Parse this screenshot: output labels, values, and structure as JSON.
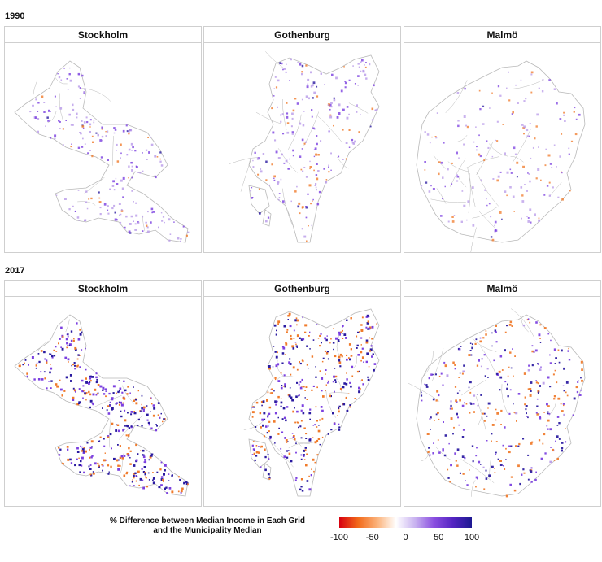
{
  "rows": [
    {
      "year": "1990",
      "panels": [
        {
          "city": "Stockholm",
          "shape": "stockholm",
          "intensity": 0.55,
          "orange_share": 0.15,
          "dark_share": 0.05,
          "seed": 11
        },
        {
          "city": "Gothenburg",
          "shape": "gothenburg",
          "intensity": 0.55,
          "orange_share": 0.18,
          "dark_share": 0.06,
          "seed": 23
        },
        {
          "city": "Malmö",
          "shape": "malmo",
          "intensity": 0.45,
          "orange_share": 0.2,
          "dark_share": 0.04,
          "seed": 37
        }
      ]
    },
    {
      "year": "2017",
      "panels": [
        {
          "city": "Stockholm",
          "shape": "stockholm",
          "intensity": 1.0,
          "orange_share": 0.35,
          "dark_share": 0.35,
          "seed": 51
        },
        {
          "city": "Gothenburg",
          "shape": "gothenburg",
          "intensity": 1.0,
          "orange_share": 0.4,
          "dark_share": 0.35,
          "seed": 67
        },
        {
          "city": "Malmö",
          "shape": "malmo",
          "intensity": 0.85,
          "orange_share": 0.35,
          "dark_share": 0.3,
          "seed": 79
        }
      ]
    }
  ],
  "legend": {
    "title_line1": "% Difference between Median Income in Each Grid",
    "title_line2": "and the Municipality Median",
    "ticks": [
      "-100",
      "-50",
      "0",
      "50",
      "100"
    ],
    "tick_values": [
      -100,
      -50,
      0,
      50,
      100
    ],
    "range": [
      -100,
      100
    ],
    "colors": [
      "#d7000f",
      "#f26a1a",
      "#fbb27a",
      "#ffffff",
      "#c9b3f0",
      "#8a4fe0",
      "#5424c2",
      "#1c1891"
    ]
  },
  "colors": {
    "boundary": "#b9b9b9",
    "orange": "#f07a2a",
    "light_purple": "#b89ae8",
    "purple": "#7b3fe0",
    "dark_purple": "#2a1aa0"
  }
}
